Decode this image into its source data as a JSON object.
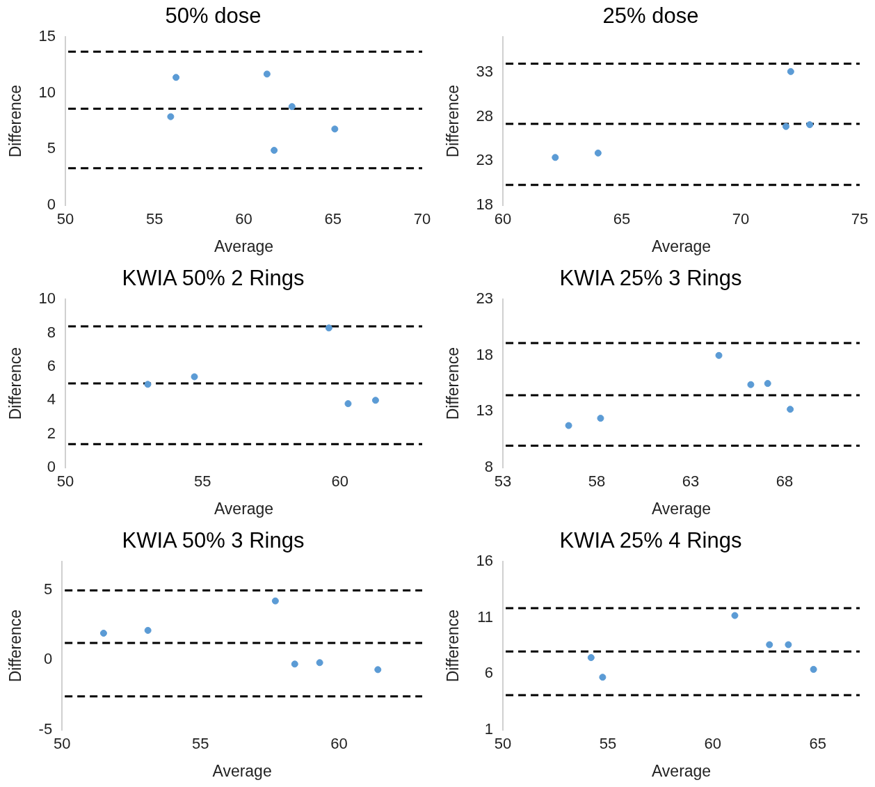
{
  "chart_data": [
    {
      "type": "scatter",
      "title": "50% dose",
      "xlabel": "Average",
      "ylabel": "Difference",
      "xlim": [
        50,
        70
      ],
      "ylim": [
        0,
        15
      ],
      "xticks": [
        50,
        55,
        60,
        65,
        70
      ],
      "yticks": [
        0,
        5,
        10,
        15
      ],
      "marker": "circle",
      "series": [
        {
          "color": "#5b9bd5",
          "x": [
            56.2,
            55.9,
            61.3,
            61.7,
            62.7,
            65.1
          ],
          "values": [
            11.4,
            7.9,
            11.7,
            4.9,
            8.8,
            6.8
          ]
        }
      ],
      "ref_lines": [
        {
          "axis": "y",
          "value": 13.7,
          "color": "#000000",
          "line_style": "dashed"
        },
        {
          "axis": "y",
          "value": 8.6,
          "color": "#000000",
          "line_style": "dashed"
        },
        {
          "axis": "y",
          "value": 3.3,
          "color": "#000000",
          "line_style": "dashed"
        }
      ]
    },
    {
      "type": "scatter",
      "title": "25% dose",
      "xlabel": "Average",
      "ylabel": "Difference",
      "xlim": [
        60,
        75
      ],
      "ylim": [
        18,
        37
      ],
      "xticks": [
        60,
        65,
        70,
        75
      ],
      "yticks": [
        18,
        23,
        28,
        33
      ],
      "marker": "circle",
      "series": [
        {
          "color": "#5b9bd5",
          "x": [
            62.2,
            64.0,
            72.1,
            71.9,
            72.9
          ],
          "values": [
            23.4,
            23.9,
            33.1,
            26.9,
            27.1
          ]
        }
      ],
      "ref_lines": [
        {
          "axis": "y",
          "value": 34.0,
          "color": "#000000",
          "line_style": "dashed"
        },
        {
          "axis": "y",
          "value": 27.2,
          "color": "#000000",
          "line_style": "dashed"
        },
        {
          "axis": "y",
          "value": 20.3,
          "color": "#000000",
          "line_style": "dashed"
        }
      ]
    },
    {
      "type": "scatter",
      "title": "KWIA 50% 2 Rings",
      "xlabel": "Average",
      "ylabel": "Difference",
      "xlim": [
        50,
        63
      ],
      "ylim": [
        0,
        10
      ],
      "xticks": [
        50,
        55,
        60
      ],
      "yticks": [
        0,
        2,
        4,
        6,
        8,
        10
      ],
      "marker": "circle",
      "series": [
        {
          "color": "#5b9bd5",
          "x": [
            53.0,
            54.7,
            59.6,
            60.3,
            61.3
          ],
          "values": [
            4.95,
            5.4,
            8.3,
            3.8,
            4.0
          ]
        }
      ],
      "ref_lines": [
        {
          "axis": "y",
          "value": 8.4,
          "color": "#000000",
          "line_style": "dashed"
        },
        {
          "axis": "y",
          "value": 5.0,
          "color": "#000000",
          "line_style": "dashed"
        },
        {
          "axis": "y",
          "value": 1.4,
          "color": "#000000",
          "line_style": "dashed"
        }
      ]
    },
    {
      "type": "scatter",
      "title": "KWIA 25% 3 Rings",
      "xlabel": "Average",
      "ylabel": "Difference",
      "xlim": [
        53,
        72
      ],
      "ylim": [
        8,
        23
      ],
      "xticks": [
        53,
        58,
        63,
        68
      ],
      "yticks": [
        8,
        13,
        18,
        23
      ],
      "marker": "circle",
      "series": [
        {
          "color": "#5b9bd5",
          "x": [
            56.5,
            58.2,
            64.5,
            66.2,
            67.1,
            68.3
          ],
          "values": [
            11.75,
            12.4,
            18.0,
            15.4,
            15.5,
            13.2
          ]
        }
      ],
      "ref_lines": [
        {
          "axis": "y",
          "value": 19.1,
          "color": "#000000",
          "line_style": "dashed"
        },
        {
          "axis": "y",
          "value": 14.45,
          "color": "#000000",
          "line_style": "dashed"
        },
        {
          "axis": "y",
          "value": 9.95,
          "color": "#000000",
          "line_style": "dashed"
        }
      ]
    },
    {
      "type": "scatter",
      "title": "KWIA 50% 3 Rings",
      "xlabel": "Average",
      "ylabel": "Difference",
      "xlim": [
        50,
        63
      ],
      "ylim": [
        -5,
        7
      ],
      "xticks": [
        50,
        55,
        60
      ],
      "yticks": [
        -5,
        0,
        5
      ],
      "marker": "circle",
      "series": [
        {
          "color": "#5b9bd5",
          "x": [
            51.5,
            53.1,
            57.7,
            58.4,
            59.3,
            61.4
          ],
          "values": [
            1.9,
            2.1,
            4.2,
            -0.3,
            -0.2,
            -0.7
          ]
        }
      ],
      "ref_lines": [
        {
          "axis": "y",
          "value": 4.95,
          "color": "#000000",
          "line_style": "dashed"
        },
        {
          "axis": "y",
          "value": 1.2,
          "color": "#000000",
          "line_style": "dashed"
        },
        {
          "axis": "y",
          "value": -2.6,
          "color": "#000000",
          "line_style": "dashed"
        }
      ]
    },
    {
      "type": "scatter",
      "title": "KWIA 25% 4 Rings",
      "xlabel": "Average",
      "ylabel": "Difference",
      "xlim": [
        50,
        67
      ],
      "ylim": [
        1,
        16
      ],
      "xticks": [
        50,
        55,
        60,
        65
      ],
      "yticks": [
        1,
        6,
        11,
        16
      ],
      "marker": "circle",
      "series": [
        {
          "color": "#5b9bd5",
          "x": [
            54.2,
            54.75,
            61.05,
            62.7,
            63.6,
            64.8
          ],
          "values": [
            7.45,
            5.7,
            11.2,
            8.6,
            8.6,
            6.4
          ]
        }
      ],
      "ref_lines": [
        {
          "axis": "y",
          "value": 11.85,
          "color": "#000000",
          "line_style": "dashed"
        },
        {
          "axis": "y",
          "value": 8.0,
          "color": "#000000",
          "line_style": "dashed"
        },
        {
          "axis": "y",
          "value": 4.1,
          "color": "#000000",
          "line_style": "dashed"
        }
      ]
    }
  ]
}
